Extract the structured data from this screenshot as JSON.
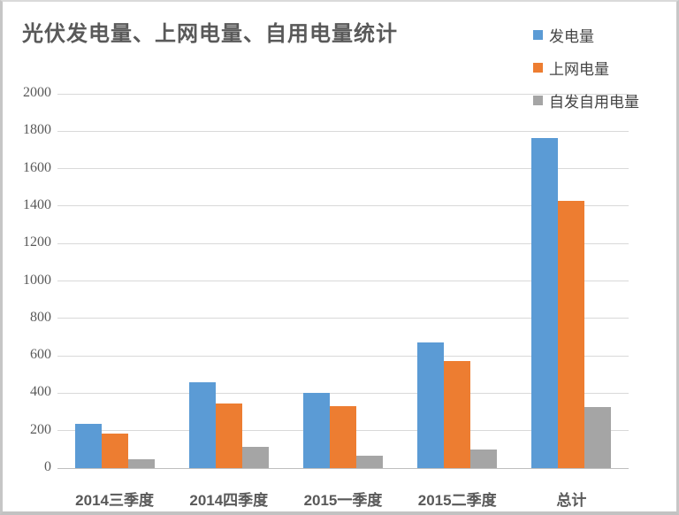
{
  "chart_data": {
    "type": "bar",
    "title": "光伏发电量、上网电量、自用电量统计",
    "categories": [
      "2014三季度",
      "2014四季度",
      "2015一季度",
      "2015二季度",
      "总计"
    ],
    "series": [
      {
        "name": "发电量",
        "color": "#5b9bd5",
        "values": [
          235,
          460,
          400,
          670,
          1765
        ]
      },
      {
        "name": "上网电量",
        "color": "#ed7d31",
        "values": [
          185,
          345,
          330,
          570,
          1430
        ]
      },
      {
        "name": "自发自用电量",
        "color": "#a5a5a5",
        "values": [
          45,
          115,
          65,
          100,
          325
        ]
      }
    ],
    "xlabel": "",
    "ylabel": "",
    "ylim": [
      0,
      2000
    ],
    "ytick_step": 200,
    "ytick_labels": [
      "0",
      "200",
      "400",
      "600",
      "800",
      "1000",
      "1200",
      "1400",
      "1600",
      "1800",
      "2000"
    ],
    "grid": true,
    "legend_position": "top-right",
    "colors": {
      "title": "#595959",
      "gridline": "#d9d9d9",
      "axis_line": "#bfbfbf",
      "tick_label": "#595959",
      "category_label": "#595959",
      "background": "#ffffff",
      "frame_border": "#c6c6c6"
    }
  }
}
